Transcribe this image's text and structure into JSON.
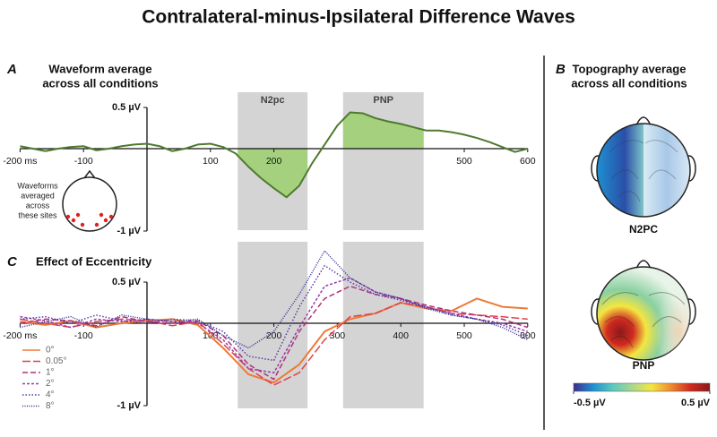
{
  "title": "Contralateral-minus-Ipsilateral Difference Waves",
  "chart_data": [
    {
      "type": "line",
      "panel_label": "A",
      "title": [
        "Waveform average",
        "across all conditions"
      ],
      "x": [
        -200,
        -180,
        -160,
        -140,
        -120,
        -100,
        -80,
        -60,
        -40,
        -20,
        0,
        20,
        40,
        60,
        80,
        100,
        120,
        140,
        160,
        180,
        200,
        220,
        240,
        260,
        280,
        300,
        320,
        340,
        360,
        380,
        400,
        420,
        440,
        460,
        480,
        500,
        520,
        540,
        560,
        580,
        600
      ],
      "series": [
        {
          "color": "#4e7a2e",
          "dash": "solid",
          "values": [
            0.03,
            0.0,
            -0.03,
            0.0,
            0.02,
            0.03,
            -0.02,
            0.0,
            0.03,
            0.05,
            0.06,
            0.03,
            -0.03,
            0.0,
            0.05,
            0.06,
            0.02,
            -0.06,
            -0.22,
            -0.36,
            -0.48,
            -0.59,
            -0.45,
            -0.18,
            0.05,
            0.28,
            0.44,
            0.43,
            0.37,
            0.33,
            0.3,
            0.26,
            0.22,
            0.22,
            0.2,
            0.17,
            0.13,
            0.08,
            0.02,
            -0.04,
            0.0
          ]
        }
      ],
      "xlim": [
        -200,
        600
      ],
      "ylim": [
        -1,
        0.5
      ],
      "xticks": [
        {
          "value": -200,
          "label": "-200 ms"
        },
        -100,
        100,
        200,
        500,
        600
      ],
      "yticks": [
        {
          "value": 0.5,
          "label": "0.5 µV"
        },
        {
          "value": -1,
          "label": "-1 µV"
        }
      ],
      "regions": [
        {
          "label": "N2pc",
          "range": [
            143,
            253
          ]
        },
        {
          "label": "PNP",
          "range": [
            309,
            436
          ]
        }
      ],
      "region_color": "#d4d4d4",
      "fill_regions": true,
      "fill_color": "#a5d17f",
      "annotation": [
        "Waveforms",
        "averaged",
        "across",
        "these sites"
      ]
    },
    {
      "type": "line",
      "panel_label": "C",
      "title": [
        "Effect of Eccentricity"
      ],
      "x": [
        -200,
        -160,
        -120,
        -80,
        -40,
        0,
        40,
        80,
        120,
        160,
        200,
        240,
        280,
        320,
        360,
        400,
        440,
        480,
        520,
        560,
        600
      ],
      "series": [
        {
          "name": "0°",
          "color": "#ee7a36",
          "dash": "solid",
          "values": [
            0.02,
            -0.02,
            0.03,
            -0.05,
            0.0,
            0.03,
            0.05,
            -0.02,
            -0.3,
            -0.62,
            -0.72,
            -0.5,
            -0.1,
            0.05,
            0.12,
            0.25,
            0.18,
            0.15,
            0.3,
            0.2,
            0.18
          ]
        },
        {
          "name": "0.05°",
          "color": "#e0404f",
          "dash": "longdash",
          "values": [
            0.05,
            0.0,
            -0.05,
            0.02,
            0.05,
            0.03,
            -0.03,
            0.02,
            -0.25,
            -0.55,
            -0.75,
            -0.6,
            -0.2,
            0.08,
            0.12,
            0.25,
            0.2,
            0.12,
            0.1,
            0.08,
            0.05
          ]
        },
        {
          "name": "1°",
          "color": "#b2307c",
          "dash": "dash",
          "values": [
            0.0,
            0.05,
            0.03,
            -0.03,
            0.08,
            0.02,
            0.0,
            0.03,
            -0.15,
            -0.5,
            -0.68,
            -0.1,
            0.3,
            0.45,
            0.35,
            0.3,
            0.22,
            0.15,
            0.1,
            0.05,
            -0.05
          ]
        },
        {
          "name": "2°",
          "color": "#9a3aa6",
          "dash": "shortdash",
          "values": [
            0.08,
            0.03,
            -0.05,
            0.05,
            0.02,
            0.05,
            0.02,
            0.0,
            -0.2,
            -0.55,
            -0.6,
            -0.05,
            0.45,
            0.55,
            0.38,
            0.3,
            0.2,
            0.12,
            0.05,
            0.0,
            -0.1
          ]
        },
        {
          "name": "4°",
          "color": "#5a3aa8",
          "dash": "dot",
          "values": [
            0.05,
            0.08,
            0.0,
            0.1,
            0.03,
            0.0,
            0.05,
            0.03,
            -0.1,
            -0.4,
            -0.45,
            0.2,
            0.7,
            0.5,
            0.35,
            0.28,
            0.2,
            0.1,
            0.05,
            -0.02,
            -0.15
          ]
        },
        {
          "name": "8°",
          "color": "#2b2e96",
          "dash": "finedot",
          "values": [
            -0.05,
            0.02,
            0.08,
            -0.05,
            0.1,
            0.05,
            0.02,
            0.05,
            -0.15,
            -0.3,
            -0.1,
            0.35,
            0.88,
            0.55,
            0.38,
            0.3,
            0.18,
            0.1,
            0.05,
            -0.05,
            -0.2
          ]
        }
      ],
      "xlim": [
        -200,
        600
      ],
      "ylim": [
        -1,
        0.5
      ],
      "xticks": [
        {
          "value": -200,
          "label": "-200 ms"
        },
        -100,
        100,
        200,
        300,
        400,
        500,
        600
      ],
      "yticks": [
        {
          "value": 0.5,
          "label": "0.5 µV"
        },
        {
          "value": -1,
          "label": "-1 µV"
        }
      ],
      "regions": [
        {
          "range": [
            143,
            253
          ]
        },
        {
          "range": [
            309,
            436
          ]
        }
      ],
      "region_color": "#d4d4d4",
      "legend": "lower left"
    },
    {
      "type": "topography",
      "panel_label": "B",
      "title": [
        "Topography average",
        "across all conditions"
      ],
      "maps": [
        "N2PC",
        "PNP"
      ],
      "clim": [
        -0.5,
        0.5
      ],
      "cticks": [
        {
          "value": -0.5,
          "label": "-0.5 µV"
        },
        {
          "value": 0.5,
          "label": "0.5 µV"
        }
      ],
      "colormap": [
        "#3b2f8f",
        "#1f8fd0",
        "#5cc8c0",
        "#a8d890",
        "#f4e640",
        "#f08a30",
        "#d02a20",
        "#8a1a1a"
      ]
    }
  ]
}
